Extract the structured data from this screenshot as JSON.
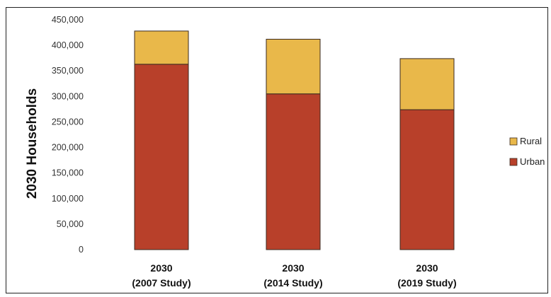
{
  "chart_data": {
    "type": "bar",
    "stacked": true,
    "categories": [
      "2030\n(2007 Study)",
      "2030\n(2014 Study)",
      "2030\n(2019 Study)"
    ],
    "category_lines": [
      [
        "2030",
        "(2007 Study)"
      ],
      [
        "2030",
        "(2014 Study)"
      ],
      [
        "2030",
        "(2019 Study)"
      ]
    ],
    "series": [
      {
        "name": "Urban",
        "values": [
          363000,
          305000,
          274000
        ],
        "color": "#B8402A"
      },
      {
        "name": "Rural",
        "values": [
          65000,
          107000,
          100000
        ],
        "color": "#E9B84A"
      }
    ],
    "ylabel": "2030 Households",
    "xlabel": "",
    "ylim": [
      0,
      450000
    ],
    "yticks": [
      0,
      50000,
      100000,
      150000,
      200000,
      250000,
      300000,
      350000,
      400000,
      450000
    ],
    "ytick_labels": [
      "0",
      "50,000",
      "100,000",
      "150,000",
      "200,000",
      "250,000",
      "300,000",
      "350,000",
      "400,000",
      "450,000"
    ],
    "grid": false,
    "legend": {
      "position": "right",
      "entries": [
        "Rural",
        "Urban"
      ]
    }
  }
}
